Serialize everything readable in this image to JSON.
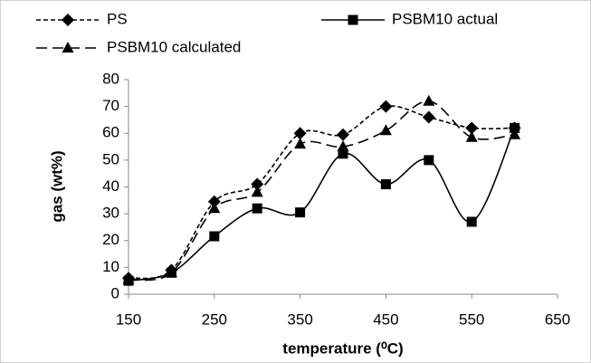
{
  "chart_data": {
    "type": "line",
    "xlabel": "temperature (⁰C)",
    "ylabel": "gas (wt%)",
    "x": [
      150,
      200,
      250,
      300,
      350,
      400,
      450,
      500,
      550,
      600
    ],
    "series": [
      {
        "name": "PS",
        "color": "#000000",
        "marker": "diamond",
        "dash": "5,3",
        "values": [
          6,
          9,
          34.5,
          41,
          60,
          59.5,
          70,
          66,
          62,
          62
        ]
      },
      {
        "name": "PSBM10 actual",
        "color": "#000000",
        "marker": "square",
        "dash": "none",
        "values": [
          5,
          8,
          21.6,
          32,
          30.5,
          52.4,
          41,
          50,
          27,
          62
        ]
      },
      {
        "name": "PSBM10 calculated",
        "color": "#000000",
        "marker": "triangle",
        "dash": "12,6",
        "values": [
          5.5,
          8,
          32,
          38,
          56,
          55,
          61,
          72,
          58.5,
          59.5
        ]
      }
    ],
    "xlim": [
      150,
      650
    ],
    "xticks": [
      150,
      250,
      350,
      450,
      550,
      650
    ],
    "ylim": [
      0,
      80
    ],
    "yticks": [
      0,
      10,
      20,
      30,
      40,
      50,
      60,
      70,
      80
    ],
    "grid": false,
    "smooth": true
  }
}
